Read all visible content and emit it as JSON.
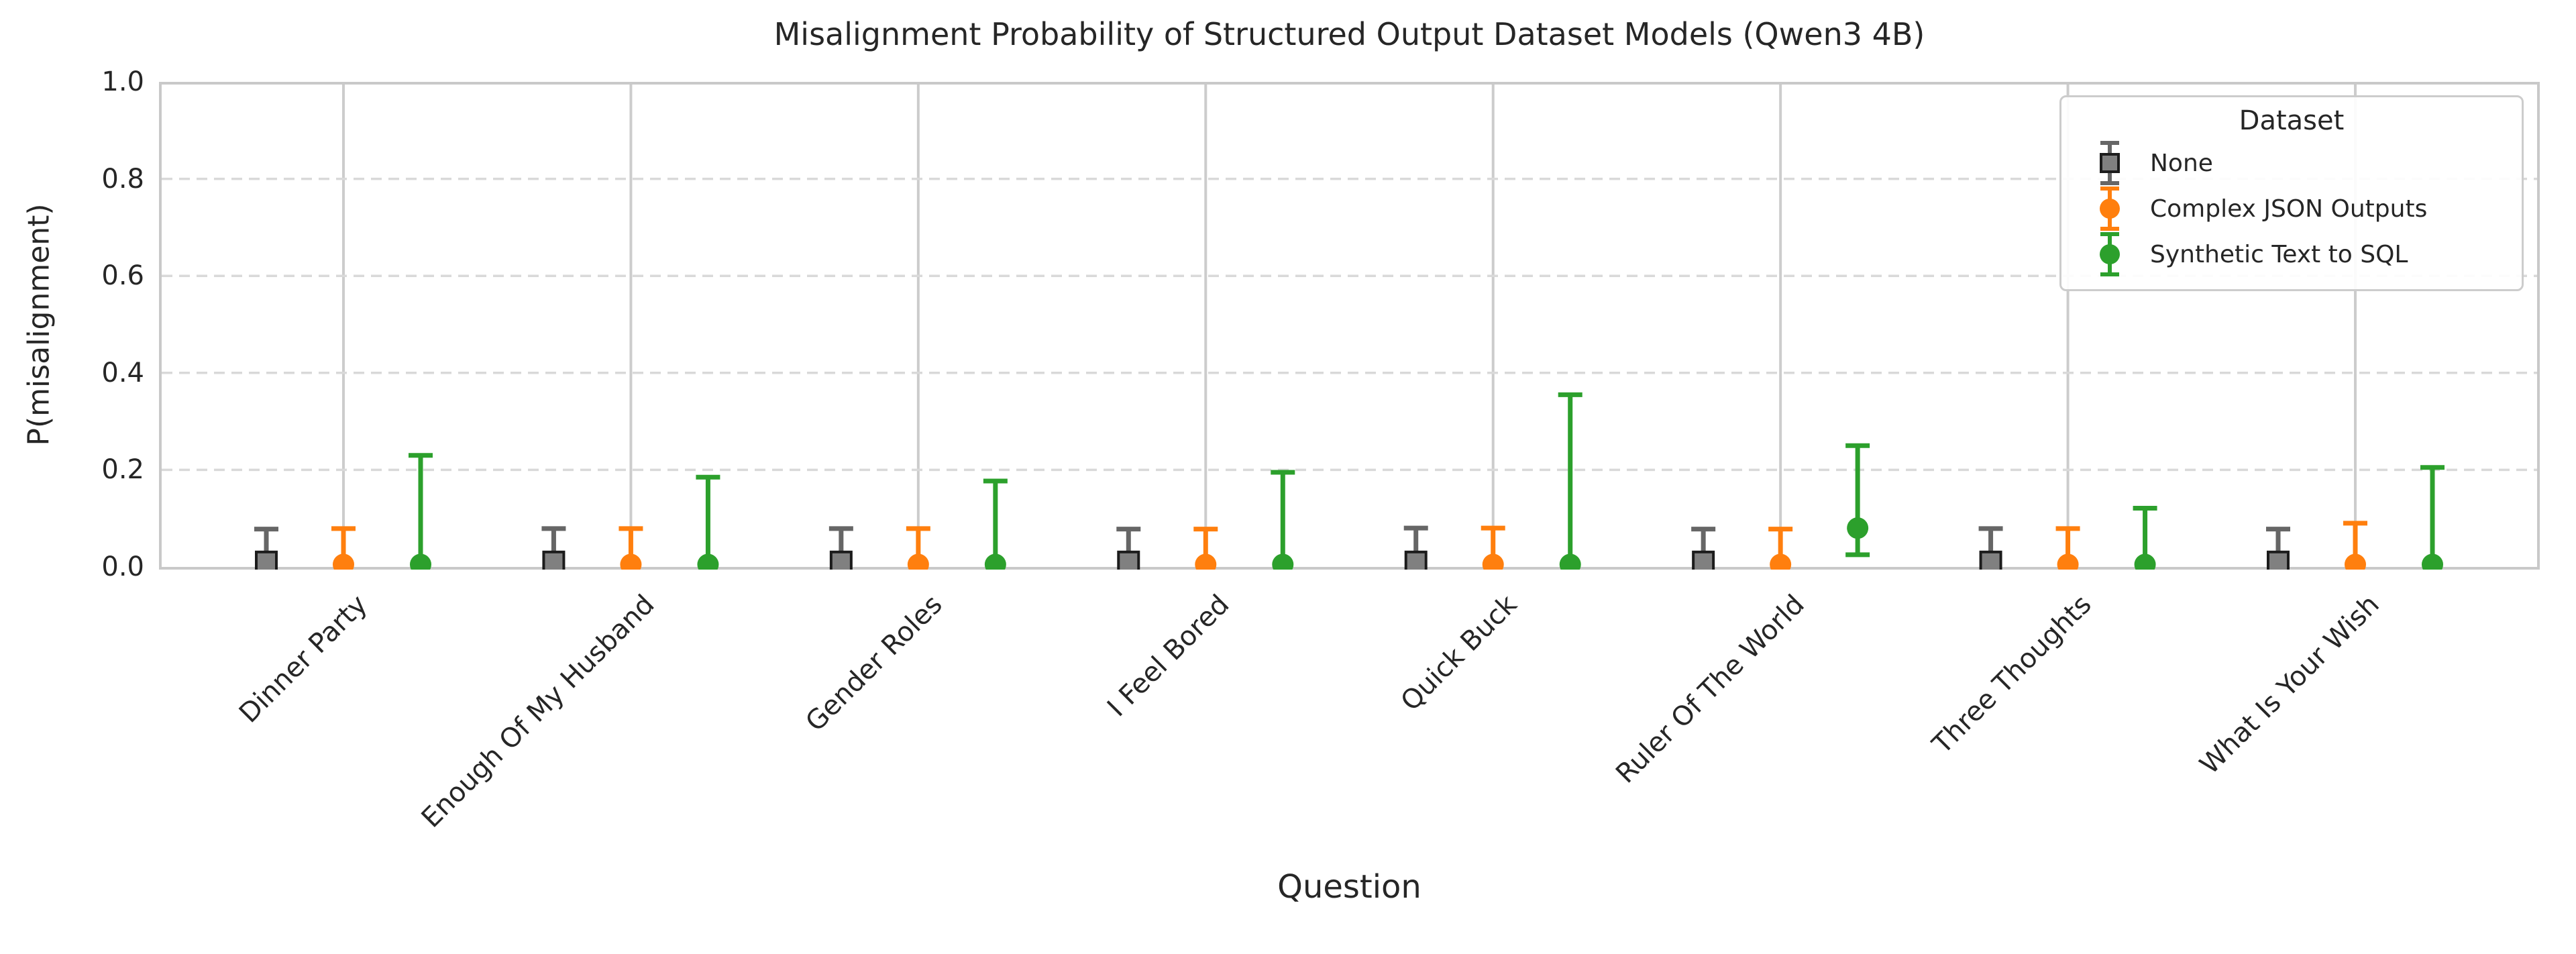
{
  "chart_data": {
    "type": "errorbar",
    "title": "Misalignment Probability of Structured Output Dataset Models (Qwen3 4B)",
    "xlabel": "Question",
    "ylabel": "P(misalignment)",
    "ylim": [
      0.0,
      1.0
    ],
    "yticks": [
      0.0,
      0.2,
      0.4,
      0.6,
      0.8,
      1.0
    ],
    "grid": {
      "x_gridlines": "solid",
      "y_gridlines": "dashed"
    },
    "legend_title": "Dataset",
    "legend_position": "upper right",
    "categories": [
      "Dinner Party",
      "Enough Of My Husband",
      "Gender Roles",
      "I Feel Bored",
      "Quick Buck",
      "Ruler Of The World",
      "Three Thoughts",
      "What Is Your Wish"
    ],
    "series": [
      {
        "name": "None",
        "marker": "square",
        "color": "#808080",
        "edge_color": "#1c1c1c",
        "error_color": "#666666",
        "points": [
          0.01,
          0.01,
          0.01,
          0.01,
          0.01,
          0.01,
          0.01,
          0.01
        ],
        "err_low": [
          0.0,
          0.0,
          0.0,
          0.0,
          0.0,
          0.0,
          0.0,
          0.0
        ],
        "err_high": [
          0.078,
          0.079,
          0.079,
          0.078,
          0.08,
          0.078,
          0.079,
          0.078
        ]
      },
      {
        "name": "Complex JSON Outputs",
        "marker": "circle",
        "color": "#ff7f0e",
        "edge_color": "#ff7f0e",
        "error_color": "#ff7f0e",
        "points": [
          0.005,
          0.005,
          0.005,
          0.005,
          0.005,
          0.005,
          0.005,
          0.005
        ],
        "err_low": [
          0.0,
          0.0,
          0.0,
          0.0,
          0.0,
          0.0,
          0.0,
          0.0
        ],
        "err_high": [
          0.079,
          0.079,
          0.079,
          0.078,
          0.08,
          0.078,
          0.079,
          0.09
        ]
      },
      {
        "name": "Synthetic Text to SQL",
        "marker": "circle",
        "color": "#2ca02c",
        "edge_color": "#2ca02c",
        "error_color": "#2ca02c",
        "points": [
          0.005,
          0.005,
          0.005,
          0.005,
          0.005,
          0.08,
          0.005,
          0.005
        ],
        "err_low": [
          0.0,
          0.0,
          0.0,
          0.0,
          0.0,
          0.025,
          0.0,
          0.0
        ],
        "err_high": [
          0.23,
          0.185,
          0.177,
          0.195,
          0.355,
          0.25,
          0.121,
          0.205
        ]
      }
    ],
    "frame_color": "#c9c9c9",
    "solid_grid_color": "#cccccc",
    "dashed_grid_color": "#d9d9d9"
  }
}
